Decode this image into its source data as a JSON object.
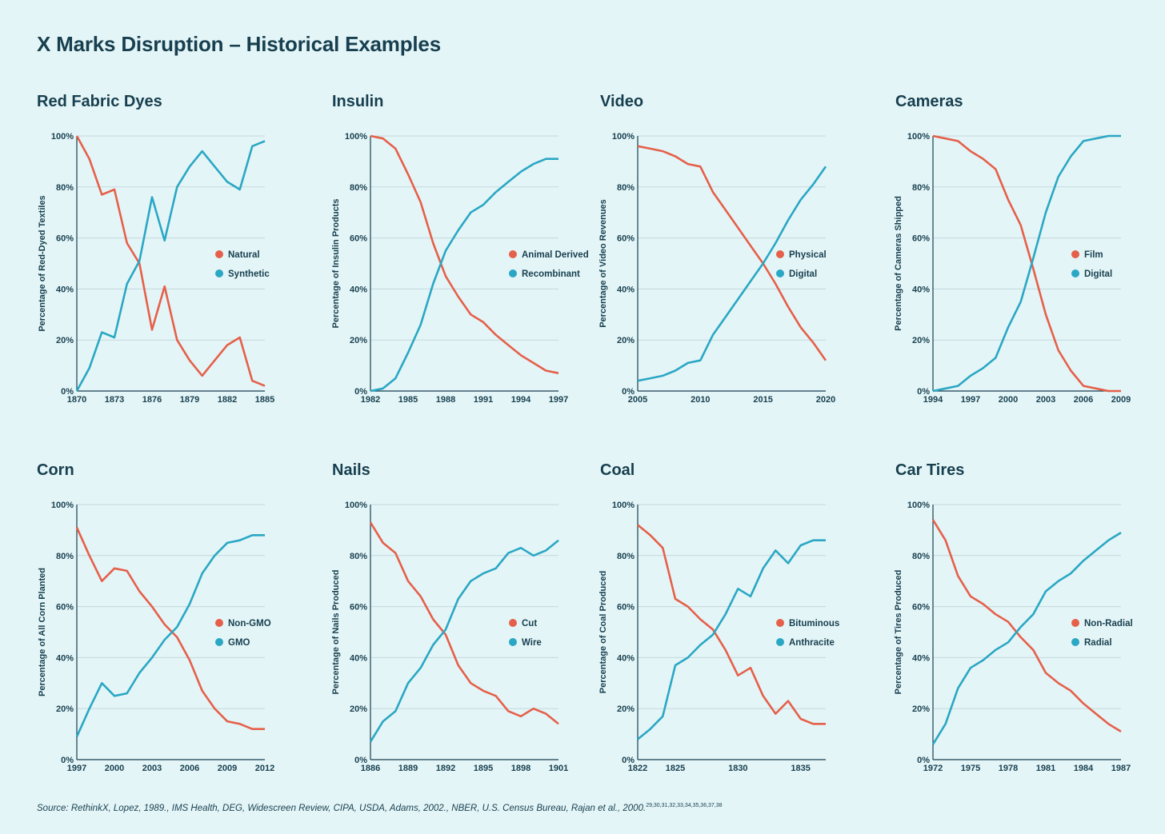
{
  "title": "X Marks Disruption – Historical Examples",
  "source": "Source: RethinkX, Lopez, 1989., IMS Health, DEG, Widescreen Review, CIPA, USDA, Adams, 2002., NBER, U.S. Census Bureau, Rajan et al., 2000.",
  "source_refs": "29,30,31,32,33,34,35,36,37,38",
  "colors": {
    "old": "#e5604a",
    "new": "#2aa7c4",
    "background": "#e4f5f7",
    "grid": "#c3d8dd",
    "text": "#173f4f"
  },
  "chart_data": [
    {
      "type": "line",
      "title": "Red Fabric Dyes",
      "ylabel": "Percentage of Red-Dyed Textiles",
      "ylim": [
        0,
        100
      ],
      "yticks": [
        "0%",
        "20%",
        "40%",
        "60%",
        "80%",
        "100%"
      ],
      "x": [
        1870,
        1871,
        1872,
        1873,
        1874,
        1875,
        1876,
        1877,
        1878,
        1879,
        1880,
        1881,
        1882,
        1883,
        1884,
        1885
      ],
      "xticks": [
        1870,
        1873,
        1876,
        1879,
        1882,
        1885
      ],
      "series": [
        {
          "name": "Natural",
          "values": [
            100,
            91,
            77,
            79,
            58,
            50,
            24,
            41,
            20,
            12,
            6,
            12,
            18,
            21,
            4,
            2
          ]
        },
        {
          "name": "Synthetic",
          "values": [
            0,
            9,
            23,
            21,
            42,
            51,
            76,
            59,
            80,
            88,
            94,
            88,
            82,
            79,
            96,
            98
          ]
        }
      ]
    },
    {
      "type": "line",
      "title": "Insulin",
      "ylabel": "Percentage of Insulin Products",
      "ylim": [
        0,
        100
      ],
      "yticks": [
        "0%",
        "20%",
        "40%",
        "60%",
        "80%",
        "100%"
      ],
      "x": [
        1982,
        1983,
        1984,
        1985,
        1986,
        1987,
        1988,
        1989,
        1990,
        1991,
        1992,
        1993,
        1994,
        1995,
        1996,
        1997
      ],
      "xticks": [
        1982,
        1985,
        1988,
        1991,
        1994,
        1997
      ],
      "series": [
        {
          "name": "Animal Derived",
          "values": [
            100,
            99,
            95,
            85,
            74,
            58,
            45,
            37,
            30,
            27,
            22,
            18,
            14,
            11,
            8,
            7
          ]
        },
        {
          "name": "Recombinant",
          "values": [
            0,
            1,
            5,
            15,
            26,
            42,
            55,
            63,
            70,
            73,
            78,
            82,
            86,
            89,
            91,
            91
          ]
        }
      ]
    },
    {
      "type": "line",
      "title": "Video",
      "ylabel": "Percentage of Video Revenues",
      "ylim": [
        0,
        100
      ],
      "yticks": [
        "0%",
        "20%",
        "40%",
        "60%",
        "80%",
        "100%"
      ],
      "x": [
        2005,
        2006,
        2007,
        2008,
        2009,
        2010,
        2011,
        2012,
        2013,
        2014,
        2015,
        2016,
        2017,
        2018,
        2019,
        2020
      ],
      "xticks": [
        2005,
        2010,
        2015,
        2020
      ],
      "series": [
        {
          "name": "Physical",
          "values": [
            96,
            95,
            94,
            92,
            89,
            88,
            78,
            71,
            64,
            57,
            50,
            42,
            33,
            25,
            19,
            12
          ]
        },
        {
          "name": "Digital",
          "values": [
            4,
            5,
            6,
            8,
            11,
            12,
            22,
            29,
            36,
            43,
            50,
            58,
            67,
            75,
            81,
            88
          ]
        }
      ]
    },
    {
      "type": "line",
      "title": "Cameras",
      "ylabel": "Percentage of Cameras Shipped",
      "ylim": [
        0,
        100
      ],
      "yticks": [
        "0%",
        "20%",
        "40%",
        "60%",
        "80%",
        "100%"
      ],
      "x": [
        1994,
        1995,
        1996,
        1997,
        1998,
        1999,
        2000,
        2001,
        2002,
        2003,
        2004,
        2005,
        2006,
        2007,
        2008,
        2009
      ],
      "xticks": [
        1994,
        1997,
        2000,
        2003,
        2006,
        2009
      ],
      "series": [
        {
          "name": "Film",
          "values": [
            100,
            99,
            98,
            94,
            91,
            87,
            75,
            65,
            48,
            30,
            16,
            8,
            2,
            1,
            0,
            0
          ]
        },
        {
          "name": "Digital",
          "values": [
            0,
            1,
            2,
            6,
            9,
            13,
            25,
            35,
            52,
            70,
            84,
            92,
            98,
            99,
            100,
            100
          ]
        }
      ]
    },
    {
      "type": "line",
      "title": "Corn",
      "ylabel": "Percentage of All Corn Planted",
      "ylim": [
        0,
        100
      ],
      "yticks": [
        "0%",
        "20%",
        "40%",
        "60%",
        "80%",
        "100%"
      ],
      "x": [
        1997,
        1998,
        1999,
        2000,
        2001,
        2002,
        2003,
        2004,
        2005,
        2006,
        2007,
        2008,
        2009,
        2010,
        2011,
        2012
      ],
      "xticks": [
        1997,
        2000,
        2003,
        2006,
        2009,
        2012
      ],
      "series": [
        {
          "name": "Non-GMO",
          "values": [
            91,
            80,
            70,
            75,
            74,
            66,
            60,
            53,
            48,
            39,
            27,
            20,
            15,
            14,
            12,
            12
          ]
        },
        {
          "name": "GMO",
          "values": [
            9,
            20,
            30,
            25,
            26,
            34,
            40,
            47,
            52,
            61,
            73,
            80,
            85,
            86,
            88,
            88
          ]
        }
      ]
    },
    {
      "type": "line",
      "title": "Nails",
      "ylabel": "Percentage of Nails Produced",
      "ylim": [
        0,
        100
      ],
      "yticks": [
        "0%",
        "20%",
        "40%",
        "60%",
        "80%",
        "100%"
      ],
      "x": [
        1886,
        1887,
        1888,
        1889,
        1890,
        1891,
        1892,
        1893,
        1894,
        1895,
        1896,
        1897,
        1898,
        1899,
        1900,
        1901
      ],
      "xticks": [
        1886,
        1889,
        1892,
        1895,
        1898,
        1901
      ],
      "series": [
        {
          "name": "Cut",
          "values": [
            93,
            85,
            81,
            70,
            64,
            55,
            49,
            37,
            30,
            27,
            25,
            19,
            17,
            20,
            18,
            14
          ]
        },
        {
          "name": "Wire",
          "values": [
            7,
            15,
            19,
            30,
            36,
            45,
            51,
            63,
            70,
            73,
            75,
            81,
            83,
            80,
            82,
            86
          ]
        }
      ]
    },
    {
      "type": "line",
      "title": "Coal",
      "ylabel": "Percentage of Coal Produced",
      "ylim": [
        0,
        100
      ],
      "yticks": [
        "0%",
        "20%",
        "40%",
        "60%",
        "80%",
        "100%"
      ],
      "x": [
        1822,
        1823,
        1824,
        1825,
        1826,
        1827,
        1828,
        1829,
        1830,
        1831,
        1832,
        1833,
        1834,
        1835,
        1836,
        1837
      ],
      "xticks": [
        1822,
        1825,
        1830,
        1835
      ],
      "series": [
        {
          "name": "Bituminous",
          "values": [
            92,
            88,
            83,
            63,
            60,
            55,
            51,
            43,
            33,
            36,
            25,
            18,
            23,
            16,
            14,
            14
          ]
        },
        {
          "name": "Anthracite",
          "values": [
            8,
            12,
            17,
            37,
            40,
            45,
            49,
            57,
            67,
            64,
            75,
            82,
            77,
            84,
            86,
            86
          ]
        }
      ]
    },
    {
      "type": "line",
      "title": "Car Tires",
      "ylabel": "Percentage of Tires Produced",
      "ylim": [
        0,
        100
      ],
      "yticks": [
        "0%",
        "20%",
        "40%",
        "60%",
        "80%",
        "100%"
      ],
      "x": [
        1972,
        1973,
        1974,
        1975,
        1976,
        1977,
        1978,
        1979,
        1980,
        1981,
        1982,
        1983,
        1984,
        1985,
        1986,
        1987
      ],
      "xticks": [
        1972,
        1975,
        1978,
        1981,
        1984,
        1987
      ],
      "series": [
        {
          "name": "Non-Radial",
          "values": [
            94,
            86,
            72,
            64,
            61,
            57,
            54,
            48,
            43,
            34,
            30,
            27,
            22,
            18,
            14,
            11
          ]
        },
        {
          "name": "Radial",
          "values": [
            6,
            14,
            28,
            36,
            39,
            43,
            46,
            52,
            57,
            66,
            70,
            73,
            78,
            82,
            86,
            89
          ]
        }
      ]
    }
  ]
}
